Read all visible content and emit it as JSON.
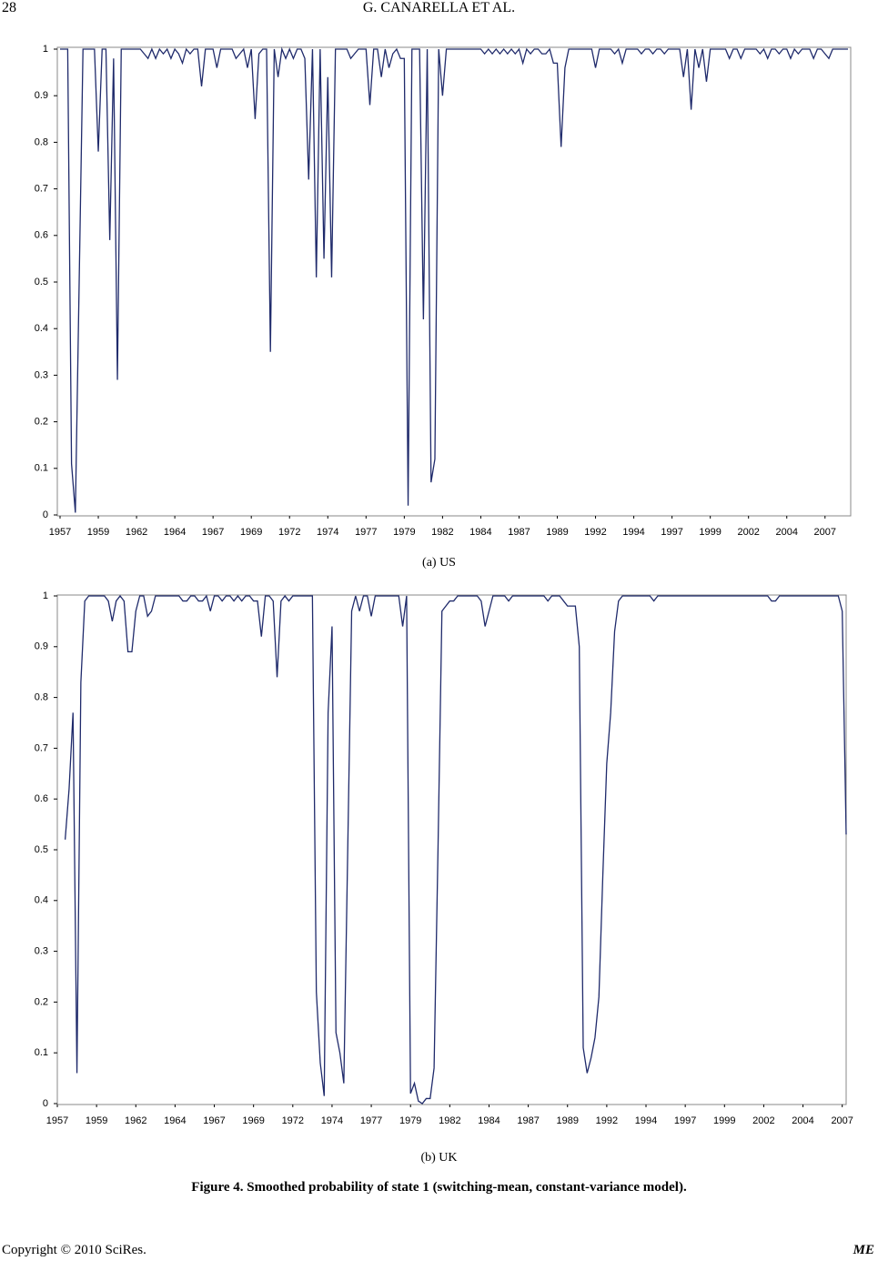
{
  "header": {
    "page": "28",
    "running_title": "G. CANARELLA    ET    AL."
  },
  "captions": [
    "(a) US",
    "(b) UK"
  ],
  "figure_caption": "Figure 4. Smoothed probability of state 1 (switching-mean, constant-variance model).",
  "footer": {
    "copyright": "Copyright © 2010 SciRes.",
    "journal": "ME"
  },
  "chart_data": [
    {
      "type": "line",
      "color": "#1f2a6b",
      "ylim": [
        0,
        1
      ],
      "yticks": [
        0,
        0.1,
        0.2,
        0.3,
        0.4,
        0.5,
        0.6,
        0.7,
        0.8,
        0.9,
        1
      ],
      "categories": [
        "1957",
        null,
        null,
        null,
        null,
        null,
        null,
        null,
        null,
        null,
        "1959",
        null,
        null,
        null,
        null,
        null,
        null,
        null,
        null,
        null,
        "1962",
        null,
        null,
        null,
        null,
        null,
        null,
        null,
        null,
        null,
        "1964",
        null,
        null,
        null,
        null,
        null,
        null,
        null,
        null,
        null,
        "1967",
        null,
        null,
        null,
        null,
        null,
        null,
        null,
        null,
        null,
        "1969",
        null,
        null,
        null,
        null,
        null,
        null,
        null,
        null,
        null,
        "1972",
        null,
        null,
        null,
        null,
        null,
        null,
        null,
        null,
        null,
        "1974",
        null,
        null,
        null,
        null,
        null,
        null,
        null,
        null,
        null,
        "1977",
        null,
        null,
        null,
        null,
        null,
        null,
        null,
        null,
        null,
        "1979",
        null,
        null,
        null,
        null,
        null,
        null,
        null,
        null,
        null,
        "1982",
        null,
        null,
        null,
        null,
        null,
        null,
        null,
        null,
        null,
        "1984",
        null,
        null,
        null,
        null,
        null,
        null,
        null,
        null,
        null,
        "1987",
        null,
        null,
        null,
        null,
        null,
        null,
        null,
        null,
        null,
        "1989",
        null,
        null,
        null,
        null,
        null,
        null,
        null,
        null,
        null,
        "1992",
        null,
        null,
        null,
        null,
        null,
        null,
        null,
        null,
        null,
        "1994",
        null,
        null,
        null,
        null,
        null,
        null,
        null,
        null,
        null,
        "1997",
        null,
        null,
        null,
        null,
        null,
        null,
        null,
        null,
        null,
        "1999",
        null,
        null,
        null,
        null,
        null,
        null,
        null,
        null,
        null,
        "2002",
        null,
        null,
        null,
        null,
        null,
        null,
        null,
        null,
        null,
        "2004",
        null,
        null,
        null,
        null,
        null,
        null,
        null,
        null,
        null,
        "2007",
        null,
        null,
        null,
        null,
        null,
        null
      ],
      "values": [
        1,
        1,
        1,
        0.11,
        0.005,
        0.5,
        1,
        1,
        1,
        1,
        0.78,
        1,
        1,
        0.59,
        0.98,
        0.29,
        1,
        1,
        1,
        1,
        1,
        1,
        0.99,
        0.98,
        1,
        0.98,
        1,
        0.99,
        1,
        0.98,
        1,
        0.99,
        0.97,
        1,
        0.99,
        1,
        1,
        0.92,
        1,
        1,
        1,
        0.96,
        1,
        1,
        1,
        1,
        0.98,
        0.99,
        1,
        0.96,
        1,
        0.85,
        0.99,
        1,
        1,
        0.35,
        1,
        0.94,
        1,
        0.98,
        1,
        0.98,
        1,
        1,
        0.98,
        0.72,
        1,
        0.51,
        1,
        0.55,
        0.94,
        0.51,
        1,
        1,
        1,
        1,
        0.98,
        0.99,
        1,
        1,
        1,
        0.88,
        1,
        1,
        0.94,
        1,
        0.96,
        0.99,
        1,
        0.98,
        0.98,
        0.02,
        1,
        1,
        1,
        0.42,
        1,
        0.07,
        0.12,
        1,
        0.9,
        1,
        1,
        1,
        1,
        1,
        1,
        1,
        1,
        1,
        1,
        0.99,
        1,
        0.99,
        1,
        0.99,
        1,
        0.99,
        1,
        0.99,
        1,
        0.97,
        1,
        0.99,
        1,
        1,
        0.99,
        0.99,
        1,
        0.97,
        0.97,
        0.79,
        0.96,
        1,
        1,
        1,
        1,
        1,
        1,
        1,
        0.96,
        1,
        1,
        1,
        1,
        0.99,
        1,
        0.97,
        1,
        1,
        1,
        1,
        0.99,
        1,
        1,
        0.99,
        1,
        1,
        0.99,
        1,
        1,
        1,
        1,
        0.94,
        1,
        0.87,
        1,
        0.96,
        1,
        0.93,
        1,
        1,
        1,
        1,
        1,
        0.98,
        1,
        1,
        0.98,
        1,
        1,
        1,
        1,
        0.99,
        1,
        0.98,
        1,
        1,
        0.99,
        1,
        1,
        0.98,
        1,
        0.99,
        1,
        1,
        1,
        0.98,
        1,
        1,
        0.99,
        0.98,
        1,
        1,
        1,
        1,
        1
      ]
    },
    {
      "type": "line",
      "color": "#1f2a6b",
      "ylim": [
        0,
        1
      ],
      "yticks": [
        0,
        0.1,
        0.2,
        0.3,
        0.4,
        0.5,
        0.6,
        0.7,
        0.8,
        0.9,
        1
      ],
      "categories": [
        "1957",
        null,
        null,
        null,
        null,
        null,
        null,
        null,
        null,
        null,
        "1959",
        null,
        null,
        null,
        null,
        null,
        null,
        null,
        null,
        null,
        "1962",
        null,
        null,
        null,
        null,
        null,
        null,
        null,
        null,
        null,
        "1964",
        null,
        null,
        null,
        null,
        null,
        null,
        null,
        null,
        null,
        "1967",
        null,
        null,
        null,
        null,
        null,
        null,
        null,
        null,
        null,
        "1969",
        null,
        null,
        null,
        null,
        null,
        null,
        null,
        null,
        null,
        "1972",
        null,
        null,
        null,
        null,
        null,
        null,
        null,
        null,
        null,
        "1974",
        null,
        null,
        null,
        null,
        null,
        null,
        null,
        null,
        null,
        "1977",
        null,
        null,
        null,
        null,
        null,
        null,
        null,
        null,
        null,
        "1979",
        null,
        null,
        null,
        null,
        null,
        null,
        null,
        null,
        null,
        "1982",
        null,
        null,
        null,
        null,
        null,
        null,
        null,
        null,
        null,
        "1984",
        null,
        null,
        null,
        null,
        null,
        null,
        null,
        null,
        null,
        "1987",
        null,
        null,
        null,
        null,
        null,
        null,
        null,
        null,
        null,
        "1989",
        null,
        null,
        null,
        null,
        null,
        null,
        null,
        null,
        null,
        "1992",
        null,
        null,
        null,
        null,
        null,
        null,
        null,
        null,
        null,
        "1994",
        null,
        null,
        null,
        null,
        null,
        null,
        null,
        null,
        null,
        "1997",
        null,
        null,
        null,
        null,
        null,
        null,
        null,
        null,
        null,
        "1999",
        null,
        null,
        null,
        null,
        null,
        null,
        null,
        null,
        null,
        "2002",
        null,
        null,
        null,
        null,
        null,
        null,
        null,
        null,
        null,
        "2004",
        null,
        null,
        null,
        null,
        null,
        null,
        null,
        null,
        null,
        "2007",
        null
      ],
      "values": [
        null,
        null,
        0.52,
        0.62,
        0.77,
        0.06,
        0.83,
        0.99,
        1,
        1,
        1,
        1,
        1,
        0.99,
        0.95,
        0.99,
        1,
        0.99,
        0.89,
        0.89,
        0.97,
        1,
        1,
        0.96,
        0.97,
        1,
        1,
        1,
        1,
        1,
        1,
        1,
        0.99,
        0.99,
        1,
        1,
        0.99,
        0.99,
        1,
        0.97,
        1,
        1,
        0.99,
        1,
        1,
        0.99,
        1,
        0.99,
        1,
        1,
        0.99,
        0.99,
        0.92,
        1,
        1,
        0.99,
        0.84,
        0.99,
        1,
        0.99,
        1,
        1,
        1,
        1,
        1,
        1,
        0.22,
        0.08,
        0.015,
        0.77,
        0.94,
        0.14,
        0.1,
        0.04,
        0.5,
        0.97,
        1,
        0.97,
        1,
        1,
        0.96,
        1,
        1,
        1,
        1,
        1,
        1,
        1,
        0.94,
        1,
        0.02,
        0.04,
        0.005,
        0,
        0.01,
        0.01,
        0.07,
        0.5,
        0.97,
        0.98,
        0.99,
        0.99,
        1,
        1,
        1,
        1,
        1,
        1,
        0.99,
        0.94,
        0.97,
        1,
        1,
        1,
        1,
        0.99,
        1,
        1,
        1,
        1,
        1,
        1,
        1,
        1,
        1,
        0.99,
        1,
        1,
        1,
        0.99,
        0.98,
        0.98,
        0.98,
        0.9,
        0.11,
        0.06,
        0.09,
        0.13,
        0.21,
        0.45,
        0.67,
        0.77,
        0.93,
        0.99,
        1,
        1,
        1,
        1,
        1,
        1,
        1,
        1,
        0.99,
        1,
        1,
        1,
        1,
        1,
        1,
        1,
        1,
        1,
        1,
        1,
        1,
        1,
        1,
        1,
        1,
        1,
        1,
        1,
        1,
        1,
        1,
        1,
        1,
        1,
        1,
        1,
        1,
        1,
        0.99,
        0.99,
        1,
        1,
        1,
        1,
        1,
        1,
        1,
        1,
        1,
        1,
        1,
        1,
        1,
        1,
        1,
        1,
        0.97,
        0.53
      ]
    }
  ]
}
